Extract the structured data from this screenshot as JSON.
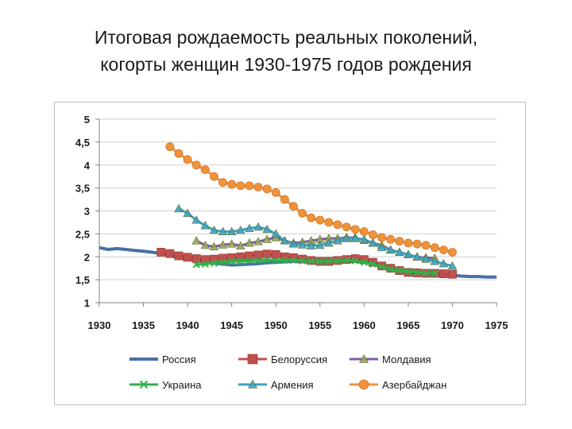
{
  "title_lines": [
    "Итоговая рождаемость реальных поколений,",
    "когорты женщин 1930-1975 годов рождения"
  ],
  "chart_data": {
    "type": "line",
    "title": "Итоговая рождаемость реальных поколений, когорты женщин 1930-1975 годов рождения",
    "xlabel": "",
    "ylabel": "",
    "xlim": [
      1930,
      1975
    ],
    "ylim": [
      1,
      5
    ],
    "x_ticks": [
      "1930",
      "1935",
      "1940",
      "1945",
      "1950",
      "1955",
      "1960",
      "1965",
      "1970",
      "1975"
    ],
    "y_ticks": [
      "1",
      "1,5",
      "2",
      "2,5",
      "3",
      "3,5",
      "4",
      "4,5",
      "5"
    ],
    "grid": "horizontal",
    "legend_position": "bottom",
    "series": [
      {
        "name": "Россия",
        "color": "#4a6fa5",
        "marker": "none",
        "x": [
          1930,
          1931,
          1932,
          1933,
          1934,
          1935,
          1936,
          1937,
          1938,
          1939,
          1940,
          1941,
          1942,
          1943,
          1944,
          1945,
          1946,
          1947,
          1948,
          1949,
          1950,
          1951,
          1952,
          1953,
          1954,
          1955,
          1956,
          1957,
          1958,
          1959,
          1960,
          1961,
          1962,
          1963,
          1964,
          1965,
          1966,
          1967,
          1968,
          1969,
          1970,
          1971,
          1972,
          1973,
          1974,
          1975
        ],
        "y": [
          2.2,
          2.16,
          2.18,
          2.16,
          2.14,
          2.12,
          2.1,
          2.07,
          2.02,
          1.98,
          1.95,
          1.92,
          1.88,
          1.86,
          1.84,
          1.82,
          1.83,
          1.84,
          1.85,
          1.87,
          1.88,
          1.89,
          1.9,
          1.9,
          1.9,
          1.89,
          1.89,
          1.9,
          1.9,
          1.9,
          1.88,
          1.84,
          1.78,
          1.74,
          1.7,
          1.67,
          1.64,
          1.62,
          1.61,
          1.6,
          1.6,
          1.58,
          1.57,
          1.57,
          1.56,
          1.56
        ]
      },
      {
        "name": "Белоруссия",
        "color": "#c0504d",
        "marker": "square",
        "x": [
          1937,
          1938,
          1939,
          1940,
          1941,
          1942,
          1943,
          1944,
          1945,
          1946,
          1947,
          1948,
          1949,
          1950,
          1951,
          1952,
          1953,
          1954,
          1955,
          1956,
          1957,
          1958,
          1959,
          1960,
          1961,
          1962,
          1963,
          1964,
          1965,
          1966,
          1967,
          1968,
          1969,
          1970
        ],
        "y": [
          2.1,
          2.07,
          2.02,
          1.99,
          1.96,
          1.94,
          1.95,
          1.97,
          1.98,
          2.0,
          2.02,
          2.04,
          2.06,
          2.05,
          2.0,
          1.98,
          1.95,
          1.92,
          1.9,
          1.9,
          1.92,
          1.94,
          1.96,
          1.94,
          1.88,
          1.8,
          1.75,
          1.7,
          1.66,
          1.65,
          1.64,
          1.64,
          1.63,
          1.62
        ]
      },
      {
        "name": "Молдавия",
        "color": "#7b5ea7",
        "marker": "triangle",
        "x": [
          1941,
          1942,
          1943,
          1944,
          1945,
          1946,
          1947,
          1948,
          1949,
          1950,
          1951,
          1952,
          1953,
          1954,
          1955,
          1956,
          1957,
          1958,
          1959,
          1960,
          1961,
          1962,
          1963,
          1964,
          1965,
          1966,
          1967,
          1968
        ],
        "y": [
          2.35,
          2.25,
          2.22,
          2.26,
          2.28,
          2.24,
          2.3,
          2.33,
          2.38,
          2.42,
          2.35,
          2.3,
          2.32,
          2.35,
          2.38,
          2.4,
          2.4,
          2.42,
          2.42,
          2.36,
          2.3,
          2.25,
          2.15,
          2.1,
          2.05,
          2.0,
          1.98,
          1.97
        ]
      },
      {
        "name": "Украина",
        "color": "#2db34a",
        "marker": "x",
        "x": [
          1941,
          1942,
          1943,
          1944,
          1945,
          1946,
          1947,
          1948,
          1949,
          1950,
          1951,
          1952,
          1953,
          1954,
          1955,
          1956,
          1957,
          1958,
          1959,
          1960,
          1961,
          1962,
          1963,
          1964,
          1965,
          1966,
          1967,
          1968
        ],
        "y": [
          1.83,
          1.84,
          1.86,
          1.88,
          1.9,
          1.9,
          1.91,
          1.92,
          1.93,
          1.92,
          1.92,
          1.92,
          1.91,
          1.9,
          1.9,
          1.9,
          1.91,
          1.92,
          1.91,
          1.88,
          1.84,
          1.78,
          1.73,
          1.7,
          1.68,
          1.66,
          1.64,
          1.64
        ]
      },
      {
        "name": "Армения",
        "color": "#3ea3c4",
        "marker": "triangle",
        "x": [
          1939,
          1940,
          1941,
          1942,
          1943,
          1944,
          1945,
          1946,
          1947,
          1948,
          1949,
          1950,
          1951,
          1952,
          1953,
          1954,
          1955,
          1956,
          1957,
          1958,
          1959,
          1960,
          1961,
          1962,
          1963,
          1964,
          1965,
          1966,
          1967,
          1968,
          1969,
          1970
        ],
        "y": [
          3.05,
          2.95,
          2.8,
          2.68,
          2.58,
          2.55,
          2.55,
          2.58,
          2.62,
          2.65,
          2.6,
          2.5,
          2.35,
          2.28,
          2.26,
          2.24,
          2.25,
          2.3,
          2.35,
          2.4,
          2.4,
          2.38,
          2.3,
          2.2,
          2.15,
          2.1,
          2.05,
          2.0,
          1.95,
          1.9,
          1.85,
          1.8
        ]
      },
      {
        "name": "Азербайджан",
        "color": "#f0923a",
        "marker": "circle",
        "x": [
          1938,
          1939,
          1940,
          1941,
          1942,
          1943,
          1944,
          1945,
          1946,
          1947,
          1948,
          1949,
          1950,
          1951,
          1952,
          1953,
          1954,
          1955,
          1956,
          1957,
          1958,
          1959,
          1960,
          1961,
          1962,
          1963,
          1964,
          1965,
          1966,
          1967,
          1968,
          1969,
          1970
        ],
        "y": [
          4.4,
          4.25,
          4.12,
          4.0,
          3.9,
          3.75,
          3.62,
          3.58,
          3.55,
          3.55,
          3.52,
          3.48,
          3.4,
          3.25,
          3.1,
          2.95,
          2.85,
          2.8,
          2.75,
          2.7,
          2.65,
          2.6,
          2.55,
          2.48,
          2.42,
          2.38,
          2.34,
          2.3,
          2.28,
          2.25,
          2.2,
          2.15,
          2.1
        ]
      }
    ]
  }
}
